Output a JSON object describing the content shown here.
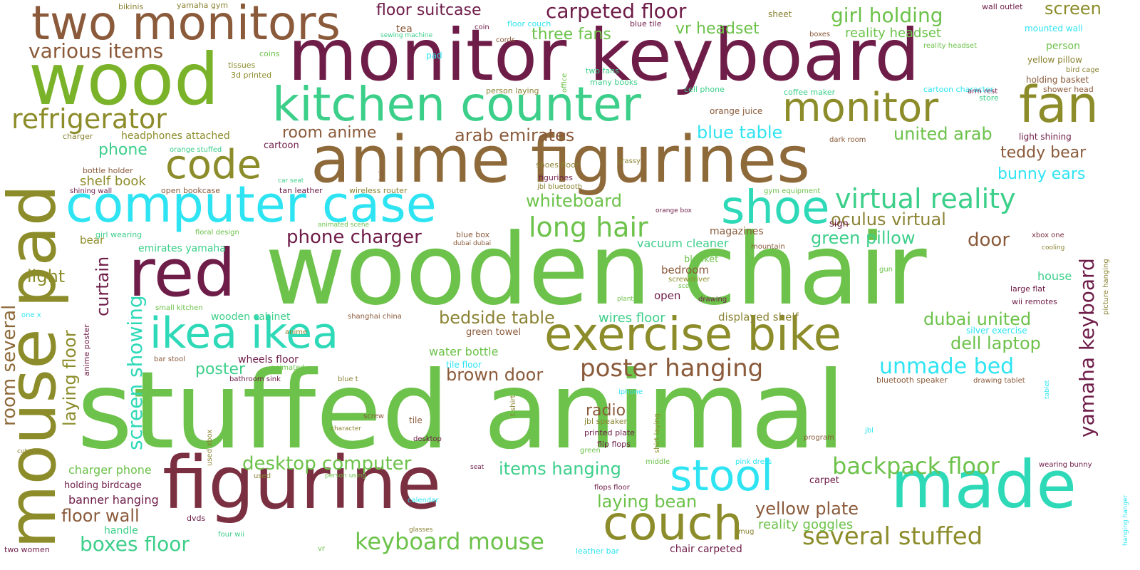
{
  "word_cloud": {
    "palette": {
      "green": "#6cc24a",
      "olive": "#8c8c2a",
      "maroon": "#6e1c48",
      "brown": "#8a5a3a",
      "rose": "#7a3040",
      "teal": "#2ed9b8",
      "cyan": "#2ee4f2",
      "lime": "#7ab32a",
      "mint": "#3ccf8a",
      "khaki": "#8b8333",
      "tan": "#8e6a3a"
    },
    "words": [
      {
        "text": "stuffed animal",
        "color": "green",
        "weight": 120
      },
      {
        "text": "wooden chair",
        "color": "green",
        "weight": 110
      },
      {
        "text": "monitor keyboard",
        "color": "maroon",
        "weight": 95
      },
      {
        "text": "figurine",
        "color": "rose",
        "weight": 90
      },
      {
        "text": "anime figurines",
        "color": "tan",
        "weight": 85
      },
      {
        "text": "wood",
        "color": "lime",
        "weight": 80
      },
      {
        "text": "mouse pad",
        "color": "olive",
        "weight": 80
      },
      {
        "text": "made",
        "color": "teal",
        "weight": 75
      },
      {
        "text": "red",
        "color": "maroon",
        "weight": 75
      },
      {
        "text": "computer case",
        "color": "cyan",
        "weight": 65
      },
      {
        "text": "two monitors",
        "color": "brown",
        "weight": 60
      },
      {
        "text": "kitchen counter",
        "color": "mint",
        "weight": 60
      },
      {
        "text": "fan",
        "color": "olive",
        "weight": 60
      },
      {
        "text": "couch",
        "color": "olive",
        "weight": 60
      },
      {
        "text": "exercise bike",
        "color": "olive",
        "weight": 55
      },
      {
        "text": "ikea ikea",
        "color": "teal",
        "weight": 55
      },
      {
        "text": "shoe",
        "color": "teal",
        "weight": 55
      },
      {
        "text": "stool",
        "color": "cyan",
        "weight": 55
      },
      {
        "text": "monitor",
        "color": "olive",
        "weight": 50
      },
      {
        "text": "code",
        "color": "olive",
        "weight": 50
      },
      {
        "text": "refrigerator",
        "color": "olive",
        "weight": 35
      },
      {
        "text": "virtual reality",
        "color": "mint",
        "weight": 35
      },
      {
        "text": "long hair",
        "color": "green",
        "weight": 35
      },
      {
        "text": "poster hanging",
        "color": "brown",
        "weight": 32
      },
      {
        "text": "several stuffed",
        "color": "olive",
        "weight": 32
      },
      {
        "text": "keyboard mouse",
        "color": "green",
        "weight": 30
      },
      {
        "text": "backpack floor",
        "color": "green",
        "weight": 30
      },
      {
        "text": "unmade bed",
        "color": "cyan",
        "weight": 28
      },
      {
        "text": "yamaha keyboard",
        "color": "maroon",
        "weight": 28
      },
      {
        "text": "screen showing",
        "color": "teal",
        "weight": 28
      },
      {
        "text": "room several",
        "color": "tan",
        "weight": 26
      },
      {
        "text": "various items",
        "color": "brown",
        "weight": 26
      },
      {
        "text": "carpeted floor",
        "color": "maroon",
        "weight": 26
      },
      {
        "text": "girl holding",
        "color": "green",
        "weight": 26
      },
      {
        "text": "laying floor",
        "color": "olive",
        "weight": 24
      },
      {
        "text": "curtain",
        "color": "maroon",
        "weight": 24
      },
      {
        "text": "boxes floor",
        "color": "mint",
        "weight": 24
      },
      {
        "text": "desktop computer",
        "color": "green",
        "weight": 24
      },
      {
        "text": "items hanging",
        "color": "mint",
        "weight": 22
      },
      {
        "text": "floor wall",
        "color": "brown",
        "weight": 22
      },
      {
        "text": "yellow plate",
        "color": "brown",
        "weight": 22
      },
      {
        "text": "laying bean",
        "color": "green",
        "weight": 22
      },
      {
        "text": "bedside table",
        "color": "khaki",
        "weight": 22
      },
      {
        "text": "dubai united",
        "color": "green",
        "weight": 22
      },
      {
        "text": "dell laptop",
        "color": "green",
        "weight": 22
      },
      {
        "text": "brown door",
        "color": "brown",
        "weight": 22
      },
      {
        "text": "teddy bear",
        "color": "brown",
        "weight": 22
      },
      {
        "text": "bunny ears",
        "color": "cyan",
        "weight": 22
      },
      {
        "text": "oculus virtual",
        "color": "khaki",
        "weight": 22
      },
      {
        "text": "green pillow",
        "color": "mint",
        "weight": 22
      },
      {
        "text": "door",
        "color": "brown",
        "weight": 22
      },
      {
        "text": "whiteboard",
        "color": "green",
        "weight": 22
      },
      {
        "text": "phone charger",
        "color": "maroon",
        "weight": 22
      },
      {
        "text": "blue table",
        "color": "cyan",
        "weight": 22
      },
      {
        "text": "united arab",
        "color": "green",
        "weight": 22
      },
      {
        "text": "arab emirates",
        "color": "brown",
        "weight": 22
      },
      {
        "text": "room anime",
        "color": "brown",
        "weight": 20
      },
      {
        "text": "floor suitcase",
        "color": "maroon",
        "weight": 20
      },
      {
        "text": "three fans",
        "color": "green",
        "weight": 20
      },
      {
        "text": "vr headset",
        "color": "green",
        "weight": 20
      },
      {
        "text": "reality headset",
        "color": "green",
        "weight": 18
      },
      {
        "text": "screen",
        "color": "olive",
        "weight": 22
      },
      {
        "text": "phone",
        "color": "mint",
        "weight": 20
      },
      {
        "text": "shelf book",
        "color": "olive",
        "weight": 18
      },
      {
        "text": "light",
        "color": "olive",
        "weight": 22
      },
      {
        "text": "radio",
        "color": "brown",
        "weight": 20
      },
      {
        "text": "poster",
        "color": "mint",
        "weight": 20
      },
      {
        "text": "reality goggles",
        "color": "green",
        "weight": 18
      },
      {
        "text": "charger phone",
        "color": "green",
        "weight": 16
      },
      {
        "text": "banner hanging",
        "color": "maroon",
        "weight": 16
      },
      {
        "text": "wires floor",
        "color": "mint",
        "weight": 18
      },
      {
        "text": "water bottle",
        "color": "green",
        "weight": 16
      },
      {
        "text": "magazines",
        "color": "brown",
        "weight": 14
      },
      {
        "text": "vacuum cleaner",
        "color": "mint",
        "weight": 14
      },
      {
        "text": "emirates yamaha",
        "color": "mint",
        "weight": 14
      },
      {
        "text": "headphones attached",
        "color": "olive",
        "weight": 14
      },
      {
        "text": "wooden cabinet",
        "color": "mint",
        "weight": 14
      },
      {
        "text": "displayed shelf",
        "color": "khaki",
        "weight": 14
      },
      {
        "text": "house",
        "color": "mint",
        "weight": 16
      },
      {
        "text": "handle",
        "color": "mint",
        "weight": 14
      },
      {
        "text": "bear",
        "color": "olive",
        "weight": 14
      },
      {
        "text": "bedroom",
        "color": "brown",
        "weight": 14
      },
      {
        "text": "blanket",
        "color": "green",
        "weight": 12
      },
      {
        "text": "open",
        "color": "maroon",
        "weight": 14
      },
      {
        "text": "tea",
        "color": "brown",
        "weight": 14
      },
      {
        "text": "holding birdcage",
        "color": "maroon",
        "weight": 13
      },
      {
        "text": "wheels floor",
        "color": "maroon",
        "weight": 13
      },
      {
        "text": "green towel",
        "color": "brown",
        "weight": 13
      },
      {
        "text": "tile floor",
        "color": "cyan",
        "weight": 12
      },
      {
        "text": "open bookcase",
        "color": "brown",
        "weight": 11
      },
      {
        "text": "tan leather",
        "color": "maroon",
        "weight": 11
      },
      {
        "text": "wireless router",
        "color": "khaki",
        "weight": 11
      },
      {
        "text": "cartoon",
        "color": "maroon",
        "weight": 12
      },
      {
        "text": "sign",
        "color": "maroon",
        "weight": 12
      },
      {
        "text": "person",
        "color": "green",
        "weight": 14
      },
      {
        "text": "yellow pillow",
        "color": "khaki",
        "weight": 12
      },
      {
        "text": "holding basket",
        "color": "brown",
        "weight": 12
      },
      {
        "text": "shower head",
        "color": "brown",
        "weight": 11
      },
      {
        "text": "light shining",
        "color": "maroon",
        "weight": 12
      },
      {
        "text": "wii remotes",
        "color": "maroon",
        "weight": 11
      },
      {
        "text": "large flat",
        "color": "maroon",
        "weight": 11
      },
      {
        "text": "silver exercise",
        "color": "cyan",
        "weight": 12
      },
      {
        "text": "bluetooth speaker",
        "color": "brown",
        "weight": 11
      },
      {
        "text": "drawing tablet",
        "color": "brown",
        "weight": 10
      },
      {
        "text": "mounted wall",
        "color": "cyan",
        "weight": 12
      },
      {
        "text": "wall outlet",
        "color": "maroon",
        "weight": 11
      },
      {
        "text": "reality headset",
        "color": "green",
        "weight": 12
      },
      {
        "text": "coffee maker",
        "color": "mint",
        "weight": 11
      },
      {
        "text": "cartoon character",
        "color": "cyan",
        "weight": 11
      },
      {
        "text": "store",
        "color": "mint",
        "weight": 11
      },
      {
        "text": "arm rest",
        "color": "maroon",
        "weight": 10
      },
      {
        "text": "bird cage",
        "color": "khaki",
        "weight": 10
      },
      {
        "text": "dark room",
        "color": "brown",
        "weight": 10
      },
      {
        "text": "orange juice",
        "color": "brown",
        "weight": 11
      },
      {
        "text": "cell phone",
        "color": "mint",
        "weight": 11
      },
      {
        "text": "person laying",
        "color": "khaki",
        "weight": 11
      },
      {
        "text": "two fans",
        "color": "mint",
        "weight": 11
      },
      {
        "text": "many books",
        "color": "mint",
        "weight": 11
      },
      {
        "text": "office",
        "color": "green",
        "weight": 10
      },
      {
        "text": "pad",
        "color": "cyan",
        "weight": 12
      },
      {
        "text": "coins",
        "color": "green",
        "weight": 11
      },
      {
        "text": "tissues",
        "color": "olive",
        "weight": 11
      },
      {
        "text": "3d printed",
        "color": "olive",
        "weight": 11
      },
      {
        "text": "yamaha gym",
        "color": "khaki",
        "weight": 11
      },
      {
        "text": "bikinis",
        "color": "khaki",
        "weight": 11
      },
      {
        "text": "sewing machine",
        "color": "mint",
        "weight": 9
      },
      {
        "text": "coin",
        "color": "maroon",
        "weight": 10
      },
      {
        "text": "cords",
        "color": "brown",
        "weight": 10
      },
      {
        "text": "floor couch",
        "color": "cyan",
        "weight": 11
      },
      {
        "text": "blue tile",
        "color": "maroon",
        "weight": 11
      },
      {
        "text": "sheet",
        "color": "khaki",
        "weight": 11
      },
      {
        "text": "boxes",
        "color": "brown",
        "weight": 10
      },
      {
        "text": "charger",
        "color": "khaki",
        "weight": 10
      },
      {
        "text": "orange stuffed",
        "color": "mint",
        "weight": 10
      },
      {
        "text": "bottle holder",
        "color": "brown",
        "weight": 11
      },
      {
        "text": "shining wall",
        "color": "maroon",
        "weight": 10
      },
      {
        "text": "girl wearing",
        "color": "mint",
        "weight": 11
      },
      {
        "text": "floral design",
        "color": "green",
        "weight": 10
      },
      {
        "text": "car seat",
        "color": "mint",
        "weight": 9
      },
      {
        "text": "hair",
        "color": "brown",
        "weight": 9
      },
      {
        "text": "shoes floor",
        "color": "khaki",
        "weight": 11
      },
      {
        "text": "grassy",
        "color": "khaki",
        "weight": 10
      },
      {
        "text": "figurines",
        "color": "maroon",
        "weight": 11
      },
      {
        "text": "jbl bluetooth",
        "color": "khaki",
        "weight": 10
      },
      {
        "text": "gym equipment",
        "color": "green",
        "weight": 10
      },
      {
        "text": "orange box",
        "color": "maroon",
        "weight": 9
      },
      {
        "text": "animated scene",
        "color": "green",
        "weight": 9
      },
      {
        "text": "blue box",
        "color": "brown",
        "weight": 11
      },
      {
        "text": "dubai dubai",
        "color": "brown",
        "weight": 9
      },
      {
        "text": "mountain",
        "color": "brown",
        "weight": 10
      },
      {
        "text": "xbox one",
        "color": "rose",
        "weight": 10
      },
      {
        "text": "cooling",
        "color": "khaki",
        "weight": 9
      },
      {
        "text": "picture hanging",
        "color": "khaki",
        "weight": 10
      },
      {
        "text": "gun",
        "color": "green",
        "weight": 10
      },
      {
        "text": "screwdriver",
        "color": "olive",
        "weight": 10
      },
      {
        "text": "scene",
        "color": "green",
        "weight": 9
      },
      {
        "text": "plants",
        "color": "green",
        "weight": 9
      },
      {
        "text": "drawing",
        "color": "maroon",
        "weight": 10
      },
      {
        "text": "small kitchen",
        "color": "green",
        "weight": 10
      },
      {
        "text": "shanghai china",
        "color": "brown",
        "weight": 10
      },
      {
        "text": "anime",
        "color": "khaki",
        "weight": 10
      },
      {
        "text": "animated",
        "color": "green",
        "weight": 10
      },
      {
        "text": "bar stool",
        "color": "brown",
        "weight": 10
      },
      {
        "text": "bathroom sink",
        "color": "maroon",
        "weight": 10
      },
      {
        "text": "blue t",
        "color": "khaki",
        "weight": 10
      },
      {
        "text": "anime poster",
        "color": "maroon",
        "weight": 10
      },
      {
        "text": "one x",
        "color": "cyan",
        "weight": 10
      },
      {
        "text": "iphone",
        "color": "cyan",
        "weight": 10
      },
      {
        "text": "t shirt",
        "color": "khaki",
        "weight": 10
      },
      {
        "text": "shirt laying",
        "color": "olive",
        "weight": 10
      },
      {
        "text": "jbl speaker",
        "color": "khaki",
        "weight": 11
      },
      {
        "text": "printed plate",
        "color": "maroon",
        "weight": 11
      },
      {
        "text": "flip flops",
        "color": "maroon",
        "weight": 11
      },
      {
        "text": "green",
        "color": "green",
        "weight": 10
      },
      {
        "text": "screw",
        "color": "brown",
        "weight": 10
      },
      {
        "text": "tile",
        "color": "brown",
        "weight": 11
      },
      {
        "text": "character",
        "color": "khaki",
        "weight": 9
      },
      {
        "text": "desktop",
        "color": "maroon",
        "weight": 10
      },
      {
        "text": "seat",
        "color": "maroon",
        "weight": 9
      },
      {
        "text": "used xbox",
        "color": "khaki",
        "weight": 10
      },
      {
        "text": "used",
        "color": "khaki",
        "weight": 10
      },
      {
        "text": "person using",
        "color": "green",
        "weight": 9
      },
      {
        "text": "cut piece",
        "color": "khaki",
        "weight": 9
      },
      {
        "text": "program",
        "color": "brown",
        "weight": 10
      },
      {
        "text": "jbl",
        "color": "cyan",
        "weight": 10
      },
      {
        "text": "tablet",
        "color": "cyan",
        "weight": 9
      },
      {
        "text": "hanging hanger",
        "color": "cyan",
        "weight": 9
      },
      {
        "text": "wearing bunny",
        "color": "maroon",
        "weight": 10
      },
      {
        "text": "pink dress",
        "color": "cyan",
        "weight": 10
      },
      {
        "text": "middle",
        "color": "green",
        "weight": 10
      },
      {
        "text": "flops floor",
        "color": "maroon",
        "weight": 10
      },
      {
        "text": "carpet",
        "color": "maroon",
        "weight": 12
      },
      {
        "text": "mug",
        "color": "khaki",
        "weight": 10
      },
      {
        "text": "calendar",
        "color": "cyan",
        "weight": 10
      },
      {
        "text": "glasses",
        "color": "khaki",
        "weight": 9
      },
      {
        "text": "dvds",
        "color": "maroon",
        "weight": 11
      },
      {
        "text": "four wii",
        "color": "mint",
        "weight": 10
      },
      {
        "text": "vr",
        "color": "green",
        "weight": 10
      },
      {
        "text": "two women",
        "color": "maroon",
        "weight": 11
      },
      {
        "text": "leather bar",
        "color": "cyan",
        "weight": 11
      },
      {
        "text": "chair carpeted",
        "color": "maroon",
        "weight": 13
      }
    ]
  }
}
